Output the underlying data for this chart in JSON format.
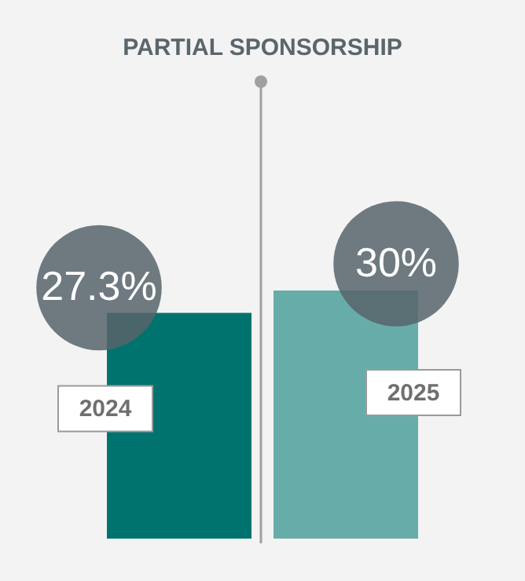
{
  "chart_data": {
    "type": "bar",
    "title": "PARTIAL SPONSORSHIP",
    "categories": [
      "2024",
      "2025"
    ],
    "values": [
      27.3,
      30
    ],
    "value_labels": [
      "27.3%",
      "30%"
    ],
    "colors": [
      "#00736f",
      "#68acaa"
    ]
  }
}
